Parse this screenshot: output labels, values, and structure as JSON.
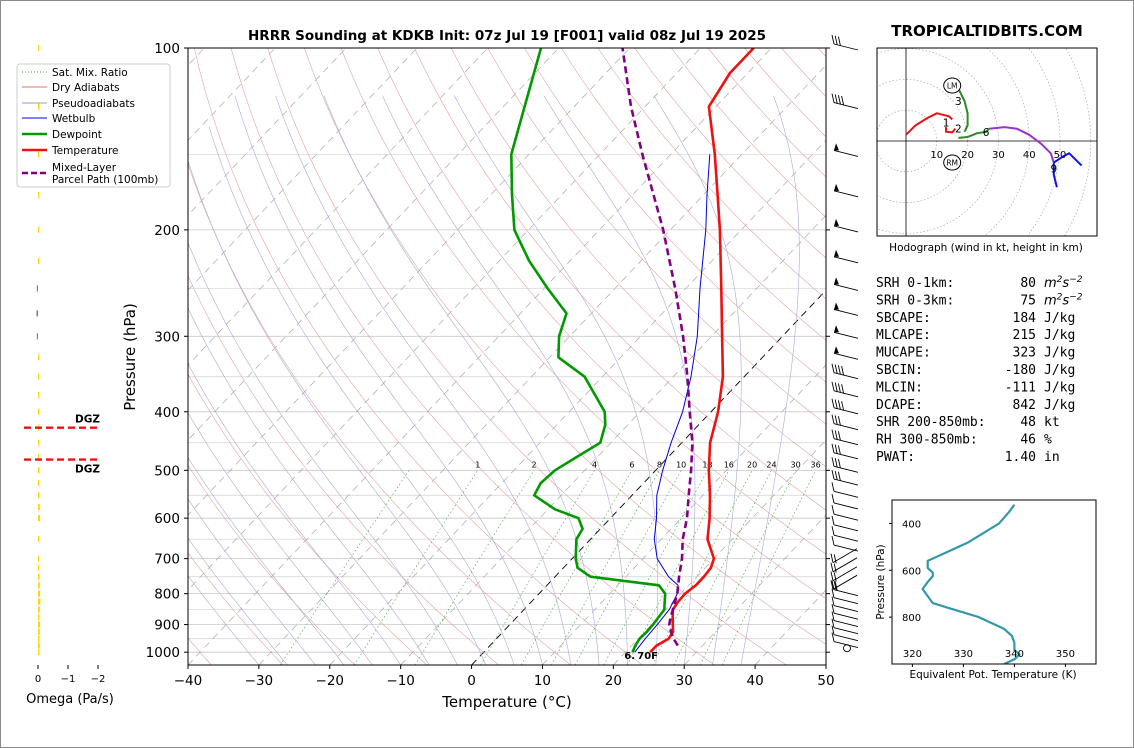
{
  "header": {
    "title": "HRRR Sounding at KDKB Init: 07z Jul 19 [F001] valid 08z Jul 19 2025",
    "site": "TROPICALTIDBITS.COM"
  },
  "chart_data": [
    {
      "type": "line",
      "name": "skewt",
      "xlabel": "Temperature (°C)",
      "ylabel": "Pressure (hPa)",
      "xlim": [
        -40,
        50
      ],
      "ylim": [
        1050,
        100
      ],
      "y_scale": "log",
      "x_ticks": [
        "−40",
        "−30",
        "−20",
        "−10",
        "0",
        "10",
        "20",
        "30",
        "40",
        "50"
      ],
      "y_ticks": [
        "100",
        "200",
        "300",
        "400",
        "500",
        "600",
        "700",
        "800",
        "900",
        "1000"
      ],
      "legend_position": "upper left",
      "legend": [
        {
          "label": "Sat. Mix. Ratio",
          "color": "#2ca02c",
          "style": "dotted"
        },
        {
          "label": "Dry Adiabats",
          "color": "#e07070",
          "style": "solid"
        },
        {
          "label": "Pseudoadiabats",
          "color": "#9a9acc",
          "style": "solid"
        },
        {
          "label": "Wetbulb",
          "color": "#0000dd",
          "style": "solid"
        },
        {
          "label": "Dewpoint",
          "color": "#009900",
          "style": "solid"
        },
        {
          "label": "Temperature",
          "color": "#ee1111",
          "style": "solid"
        },
        {
          "label": "Mixed-Layer\nParcel Path (100mb)",
          "color": "#800080",
          "style": "dashed"
        }
      ],
      "mixing_ratio_labels": [
        "1",
        "2",
        "4",
        "6",
        "8",
        "10",
        "13",
        "16",
        "20",
        "24",
        "30",
        "36"
      ],
      "surface_label": "6.70F",
      "series": [
        {
          "name": "Temperature",
          "color": "#ee1111",
          "points": [
            [
              1000,
              23.5
            ],
            [
              975,
              23.5
            ],
            [
              950,
              24.3
            ],
            [
              925,
              24.0
            ],
            [
              900,
              23.0
            ],
            [
              875,
              22.0
            ],
            [
              850,
              21.0
            ],
            [
              825,
              20.7
            ],
            [
              800,
              20.6
            ],
            [
              775,
              21.0
            ],
            [
              750,
              21.0
            ],
            [
              725,
              20.8
            ],
            [
              700,
              20.0
            ],
            [
              650,
              16.5
            ],
            [
              600,
              14.0
            ],
            [
              550,
              11.0
            ],
            [
              500,
              7.5
            ],
            [
              450,
              4.0
            ],
            [
              400,
              1.0
            ],
            [
              350,
              -3.0
            ],
            [
              300,
              -8.5
            ],
            [
              250,
              -15.0
            ],
            [
              200,
              -23.0
            ],
            [
              175,
              -28.0
            ],
            [
              150,
              -33.8
            ],
            [
              125,
              -41.0
            ],
            [
              110,
              -42.5
            ],
            [
              100,
              -42.5
            ]
          ]
        },
        {
          "name": "Dewpoint",
          "color": "#009900",
          "points": [
            [
              1000,
              21.0
            ],
            [
              975,
              20.5
            ],
            [
              950,
              20.2
            ],
            [
              925,
              20.3
            ],
            [
              900,
              20.2
            ],
            [
              850,
              19.8
            ],
            [
              825,
              18.8
            ],
            [
              800,
              17.8
            ],
            [
              775,
              15.8
            ],
            [
              750,
              5.0
            ],
            [
              725,
              2.0
            ],
            [
              700,
              0.5
            ],
            [
              650,
              -2.0
            ],
            [
              625,
              -2.5
            ],
            [
              600,
              -4.5
            ],
            [
              580,
              -9.0
            ],
            [
              550,
              -13.8
            ],
            [
              525,
              -14.5
            ],
            [
              500,
              -14.2
            ],
            [
              475,
              -12.9
            ],
            [
              450,
              -11.5
            ],
            [
              420,
              -13.2
            ],
            [
              400,
              -15.0
            ],
            [
              350,
              -22.5
            ],
            [
              325,
              -28.8
            ],
            [
              300,
              -31.5
            ],
            [
              275,
              -33.5
            ],
            [
              250,
              -39.5
            ],
            [
              225,
              -45.8
            ],
            [
              200,
              -52.0
            ],
            [
              175,
              -57.0
            ],
            [
              150,
              -62.5
            ],
            [
              125,
              -67.0
            ],
            [
              100,
              -72.5
            ]
          ]
        },
        {
          "name": "Wetbulb",
          "color": "#0000dd",
          "points": [
            [
              1000,
              21.3
            ],
            [
              950,
              21.0
            ],
            [
              900,
              20.8
            ],
            [
              850,
              20.5
            ],
            [
              800,
              19.5
            ],
            [
              775,
              18.5
            ],
            [
              750,
              16.0
            ],
            [
              700,
              12.0
            ],
            [
              650,
              9.0
            ],
            [
              600,
              6.5
            ],
            [
              550,
              3.5
            ],
            [
              500,
              1.0
            ],
            [
              450,
              -1.5
            ],
            [
              400,
              -4.0
            ],
            [
              350,
              -7.5
            ],
            [
              300,
              -12.0
            ],
            [
              250,
              -18.0
            ],
            [
              200,
              -25.0
            ],
            [
              175,
              -29.5
            ],
            [
              150,
              -34.5
            ]
          ]
        },
        {
          "name": "Mixed-Layer Parcel Path (100mb)",
          "color": "#800080",
          "dashed": true,
          "points": [
            [
              975,
              26.5
            ],
            [
              950,
              25.0
            ],
            [
              925,
              23.7
            ],
            [
              900,
              22.5
            ],
            [
              875,
              21.7
            ],
            [
              850,
              21.0
            ],
            [
              800,
              19.5
            ],
            [
              750,
              17.5
            ],
            [
              700,
              15.5
            ],
            [
              650,
              13.0
            ],
            [
              600,
              10.8
            ],
            [
              550,
              8.0
            ],
            [
              500,
              5.0
            ],
            [
              450,
              1.5
            ],
            [
              400,
              -3.0
            ],
            [
              350,
              -8.0
            ],
            [
              300,
              -14.0
            ],
            [
              250,
              -21.5
            ],
            [
              200,
              -31.0
            ],
            [
              150,
              -44.0
            ],
            [
              125,
              -52.0
            ],
            [
              100,
              -61.0
            ]
          ]
        }
      ],
      "wind_barbs_pressure_levels": [
        1000,
        975,
        950,
        925,
        900,
        875,
        850,
        825,
        800,
        775,
        750,
        725,
        700,
        675,
        650,
        625,
        600,
        575,
        550,
        525,
        500,
        475,
        450,
        425,
        400,
        375,
        350,
        325,
        300,
        275,
        250,
        225,
        200,
        175,
        150,
        125,
        100
      ]
    },
    {
      "type": "bar",
      "name": "omega",
      "xlabel": "Omega (Pa/s)",
      "x_ticks": [
        "0",
        "−1",
        "−2"
      ],
      "dgz_label": "DGZ",
      "dgz_levels_hPa": [
        425,
        480
      ],
      "values": [
        [
          1000,
          0.05
        ],
        [
          975,
          0.06
        ],
        [
          950,
          0.05
        ],
        [
          925,
          0.06
        ],
        [
          900,
          0.07
        ],
        [
          875,
          0.05
        ],
        [
          850,
          0.06
        ],
        [
          825,
          0.08
        ],
        [
          800,
          0.07
        ],
        [
          775,
          0.06
        ],
        [
          750,
          0.05
        ],
        [
          725,
          0.04
        ],
        [
          700,
          0.03
        ],
        [
          650,
          0.03
        ],
        [
          600,
          0.07
        ],
        [
          575,
          0.06
        ],
        [
          550,
          0.05
        ],
        [
          525,
          0.04
        ],
        [
          500,
          0.05
        ],
        [
          475,
          0.03
        ],
        [
          450,
          0.03
        ],
        [
          425,
          0.03
        ],
        [
          400,
          0.03
        ],
        [
          375,
          0.03
        ],
        [
          350,
          0.02
        ],
        [
          325,
          0.01
        ],
        [
          300,
          -0.02
        ],
        [
          275,
          -0.05
        ],
        [
          250,
          -0.02
        ],
        [
          225,
          0.01
        ],
        [
          200,
          0.02
        ],
        [
          175,
          0.03
        ],
        [
          150,
          0.04
        ],
        [
          125,
          0.05
        ],
        [
          100,
          0.02
        ]
      ]
    },
    {
      "type": "line",
      "name": "hodograph",
      "caption": "Hodograph (wind in kt, height in km)",
      "ring_labels": [
        "10",
        "20",
        "30",
        "40",
        "50"
      ],
      "marker_labels": [
        "1",
        "2",
        "3",
        "6",
        "9"
      ],
      "storm_motion_labels": [
        "LM",
        "RM"
      ],
      "segments": [
        {
          "color": "#ee1111",
          "points": [
            [
              0,
              2
            ],
            [
              3,
              5
            ],
            [
              7,
              7.5
            ],
            [
              10,
              9
            ],
            [
              12,
              8.5
            ],
            [
              14,
              8
            ],
            [
              15,
              7
            ]
          ]
        },
        {
          "color": "#ee1111",
          "points": [
            [
              13,
              4.5
            ],
            [
              13,
              3
            ],
            [
              15,
              2.8
            ],
            [
              16,
              4
            ]
          ]
        },
        {
          "color": "#2a8a2a",
          "points": [
            [
              17,
              1
            ],
            [
              20,
              1.3
            ],
            [
              23,
              2.5
            ],
            [
              26,
              3
            ],
            [
              27,
              4
            ]
          ]
        },
        {
          "color": "#2a8a2a",
          "points": [
            [
              17,
              17
            ],
            [
              19,
              13
            ],
            [
              20,
              9
            ],
            [
              20,
              5
            ],
            [
              19,
              3
            ]
          ]
        },
        {
          "color": "#9933cc",
          "points": [
            [
              27,
              4
            ],
            [
              32,
              4.5
            ],
            [
              36,
              4
            ],
            [
              40,
              2
            ],
            [
              44,
              -1
            ],
            [
              47,
              -4
            ],
            [
              48,
              -7
            ]
          ]
        },
        {
          "color": "#1111ee",
          "points": [
            [
              48,
              -7
            ],
            [
              51,
              -5
            ],
            [
              53,
              -4
            ],
            [
              57,
              -8
            ]
          ]
        },
        {
          "color": "#1111ee",
          "points": [
            [
              48,
              -7
            ],
            [
              48,
              -11
            ],
            [
              49,
              -15
            ]
          ]
        }
      ],
      "markers": [
        {
          "label": "1",
          "u": 13,
          "v": 6
        },
        {
          "label": "2",
          "u": 17,
          "v": 4
        },
        {
          "label": "3",
          "u": 17,
          "v": 13
        },
        {
          "label": "6",
          "u": 26,
          "v": 3
        },
        {
          "label": "9",
          "u": 48,
          "v": -9
        }
      ],
      "storm_motion": [
        {
          "label": "LM",
          "u": 15,
          "v": 18
        },
        {
          "label": "RM",
          "u": 15,
          "v": -7
        }
      ]
    },
    {
      "type": "line",
      "name": "theta_e",
      "xlabel": "Equivalent Pot. Temperature (K)",
      "ylabel": "Pressure (hPa)",
      "xlim": [
        316,
        356
      ],
      "x_ticks": [
        "320",
        "330",
        "340",
        "350"
      ],
      "y_ticks": [
        "400",
        "600",
        "800"
      ],
      "ylim": [
        1000,
        300
      ],
      "color": "#3399aa",
      "points": [
        [
          1000,
          338
        ],
        [
          980,
          340
        ],
        [
          960,
          341
        ],
        [
          940,
          340
        ],
        [
          910,
          340
        ],
        [
          880,
          339.5
        ],
        [
          850,
          338
        ],
        [
          800,
          333
        ],
        [
          760,
          327
        ],
        [
          740,
          324
        ],
        [
          710,
          323
        ],
        [
          680,
          322
        ],
        [
          650,
          323
        ],
        [
          625,
          324
        ],
        [
          610,
          324
        ],
        [
          590,
          323
        ],
        [
          560,
          323
        ],
        [
          540,
          325
        ],
        [
          510,
          328
        ],
        [
          480,
          331
        ],
        [
          440,
          334
        ],
        [
          400,
          337
        ],
        [
          350,
          339
        ],
        [
          320,
          340
        ]
      ]
    }
  ],
  "indices": [
    {
      "label": "SRH 0-1km:",
      "value": "80",
      "unit": "m2s-2",
      "color": "#000000"
    },
    {
      "label": "SRH 0-3km:",
      "value": "75",
      "unit": "m2s-2",
      "color": "#000000"
    },
    {
      "label": "SBCAPE:",
      "value": "184",
      "unit": "J/kg",
      "color": "#dd2222"
    },
    {
      "label": "MLCAPE:",
      "value": "215",
      "unit": "J/kg",
      "color": "#dd2222"
    },
    {
      "label": "MUCAPE:",
      "value": "323",
      "unit": "J/kg",
      "color": "#dd2222"
    },
    {
      "label": "SBCIN:",
      "value": "-180",
      "unit": "J/kg",
      "color": "#2222dd"
    },
    {
      "label": "MLCIN:",
      "value": "-111",
      "unit": "J/kg",
      "color": "#2222dd"
    },
    {
      "label": "DCAPE:",
      "value": "842",
      "unit": "J/kg",
      "color": "#2222dd"
    },
    {
      "label": "SHR 200-850mb:",
      "value": "48",
      "unit": "kt",
      "color": "#aa2222"
    },
    {
      "label": "RH 300-850mb:",
      "value": "46",
      "unit": "%",
      "color": "#885500"
    },
    {
      "label": "PWAT:",
      "value": "1.40",
      "unit": "in",
      "color": "#000000"
    }
  ]
}
